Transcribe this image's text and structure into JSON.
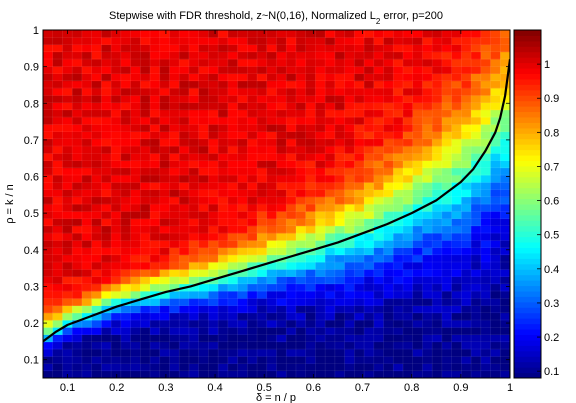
{
  "chart_data": {
    "type": "heatmap",
    "title": {
      "prefix": "Stepwise with FDR threshold, z~N(0,16), Normalized L",
      "subscript": "2",
      "suffix": " error, p=200"
    },
    "xlabel": "δ = n / p",
    "ylabel": "ρ = k / n",
    "xlim": [
      0.05,
      1.0
    ],
    "ylim": [
      0.05,
      1.0
    ],
    "x_ticks": [
      0.1,
      0.2,
      0.3,
      0.4,
      0.5,
      0.6,
      0.7,
      0.8,
      0.9,
      1
    ],
    "x_tick_labels": [
      "0.1",
      "0.2",
      "0.3",
      "0.4",
      "0.5",
      "0.6",
      "0.7",
      "0.8",
      "0.9",
      "1"
    ],
    "y_ticks": [
      0.1,
      0.2,
      0.3,
      0.4,
      0.5,
      0.6,
      0.7,
      0.8,
      0.9,
      1
    ],
    "y_tick_labels": [
      "0.1",
      "0.2",
      "0.3",
      "0.4",
      "0.5",
      "0.6",
      "0.7",
      "0.8",
      "0.9",
      "1"
    ],
    "colormap": "jet",
    "colorbar": {
      "range": [
        0.08,
        1.1
      ],
      "ticks": [
        0.1,
        0.2,
        0.3,
        0.4,
        0.5,
        0.6,
        0.7,
        0.8,
        0.9,
        1
      ],
      "tick_labels": [
        "0.1",
        "0.2",
        "0.3",
        "0.4",
        "0.5",
        "0.6",
        "0.7",
        "0.8",
        "0.9",
        "1"
      ]
    },
    "grid_resolution": {
      "nx": 48,
      "ny": 48
    },
    "field_model": {
      "low_value": 0.08,
      "high_value": 1.0,
      "transition_boundary": {
        "x": [
          0.05,
          0.1,
          0.2,
          0.3,
          0.4,
          0.5,
          0.6,
          0.7,
          0.8,
          0.9,
          0.95,
          0.98
        ],
        "y": [
          0.17,
          0.21,
          0.26,
          0.29,
          0.32,
          0.36,
          0.4,
          0.45,
          0.52,
          0.6,
          0.66,
          0.72
        ]
      }
    },
    "series": [
      {
        "type": "line",
        "color": "#000000",
        "x": [
          0.05,
          0.075,
          0.1,
          0.15,
          0.2,
          0.25,
          0.3,
          0.35,
          0.4,
          0.45,
          0.5,
          0.55,
          0.6,
          0.65,
          0.7,
          0.75,
          0.8,
          0.85,
          0.9,
          0.925,
          0.95,
          0.97,
          0.98,
          0.99,
          1.0
        ],
        "y": [
          0.15,
          0.175,
          0.195,
          0.22,
          0.245,
          0.265,
          0.285,
          0.3,
          0.32,
          0.34,
          0.36,
          0.38,
          0.4,
          0.42,
          0.445,
          0.47,
          0.5,
          0.535,
          0.585,
          0.62,
          0.67,
          0.72,
          0.76,
          0.82,
          0.92
        ]
      }
    ]
  }
}
